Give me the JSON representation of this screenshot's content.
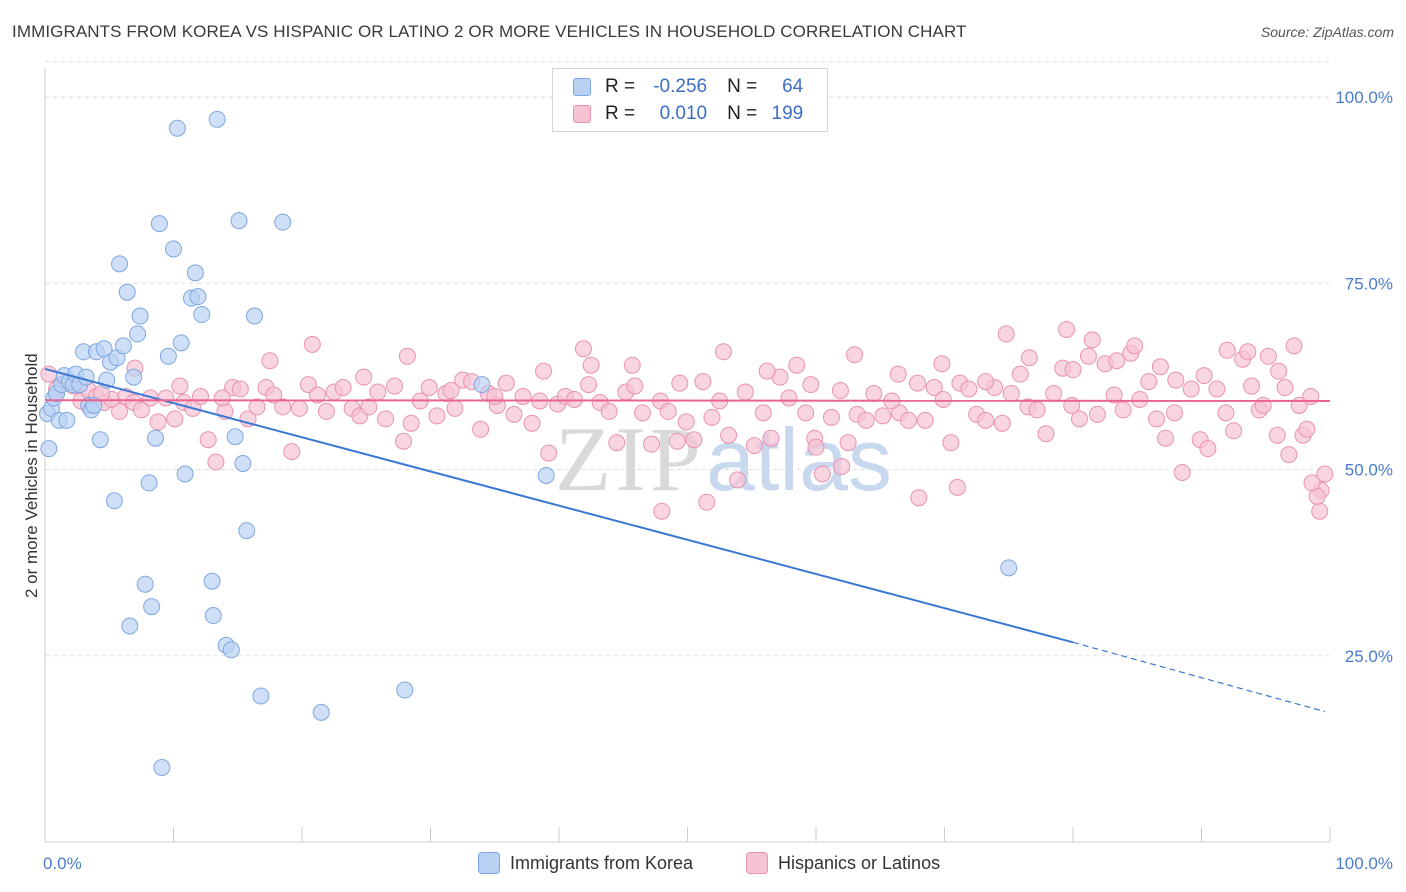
{
  "title": "IMMIGRANTS FROM KOREA VS HISPANIC OR LATINO 2 OR MORE VEHICLES IN HOUSEHOLD CORRELATION CHART",
  "source": "Source: ZipAtlas.com",
  "legend": {
    "rows": [
      {
        "r_label": "R =",
        "r_value": "-0.256",
        "n_label": "N =",
        "n_value": "64"
      },
      {
        "r_label": "R =",
        "r_value": "0.010",
        "n_label": "N =",
        "n_value": "199"
      }
    ]
  },
  "bottom_legend": {
    "series_a": "Immigrants from Korea",
    "series_b": "Hispanics or Latinos"
  },
  "watermark": {
    "part1": "ZIP",
    "part2": "atlas"
  },
  "colors": {
    "korea_fill": "#b9d2f3",
    "korea_stroke": "#7ea7e0",
    "korea_line": "#3a78d4",
    "hispanic_fill": "#f6c3d4",
    "hispanic_stroke": "#e992b2",
    "hispanic_line": "#e8638f",
    "tick_text": "#4a7cc9",
    "grid": "#dddddd"
  },
  "chart_data": {
    "type": "scatter",
    "ylabel": "2 or more Vehicles in Household",
    "xlim": [
      0,
      100
    ],
    "ylim": [
      0,
      105
    ],
    "x_tick_labels": [
      "0.0%",
      "100.0%"
    ],
    "y_ticks": [
      25,
      50,
      75,
      100
    ],
    "y_tick_labels": [
      "25.0%",
      "50.0%",
      "75.0%",
      "100.0%"
    ],
    "grid": "horizontal dashed",
    "series": [
      {
        "name": "Immigrants from Korea",
        "trend": {
          "x0": 0,
          "y0": 63.5,
          "x1": 80,
          "y1": 26.8,
          "dashed_to_x": 100,
          "dashed_to_y": 17.5
        },
        "points": [
          [
            0.2,
            57.5
          ],
          [
            0.3,
            52.8
          ],
          [
            0.5,
            58.2
          ],
          [
            0.7,
            59.6
          ],
          [
            0.9,
            60.2
          ],
          [
            1.1,
            56.6
          ],
          [
            1.3,
            61.4
          ],
          [
            1.5,
            62.6
          ],
          [
            1.7,
            56.6
          ],
          [
            1.9,
            61.8
          ],
          [
            2.2,
            61.4
          ],
          [
            2.4,
            62.8
          ],
          [
            2.7,
            61.4
          ],
          [
            3.0,
            65.8
          ],
          [
            3.2,
            62.4
          ],
          [
            3.4,
            58.6
          ],
          [
            3.6,
            58.0
          ],
          [
            3.8,
            58.6
          ],
          [
            4.0,
            65.8
          ],
          [
            4.3,
            54.0
          ],
          [
            4.6,
            66.2
          ],
          [
            4.8,
            62.0
          ],
          [
            5.1,
            64.4
          ],
          [
            5.4,
            45.8
          ],
          [
            5.6,
            65.0
          ],
          [
            5.8,
            77.6
          ],
          [
            6.1,
            66.6
          ],
          [
            6.4,
            73.8
          ],
          [
            6.6,
            29.0
          ],
          [
            6.9,
            62.4
          ],
          [
            7.2,
            68.2
          ],
          [
            7.4,
            70.6
          ],
          [
            7.8,
            34.6
          ],
          [
            8.1,
            48.2
          ],
          [
            8.3,
            31.6
          ],
          [
            8.6,
            54.2
          ],
          [
            8.9,
            83.0
          ],
          [
            9.1,
            10.0
          ],
          [
            9.6,
            65.2
          ],
          [
            10.0,
            79.6
          ],
          [
            10.3,
            95.8
          ],
          [
            10.6,
            67.0
          ],
          [
            10.9,
            49.4
          ],
          [
            11.4,
            73.0
          ],
          [
            11.7,
            76.4
          ],
          [
            11.9,
            73.2
          ],
          [
            12.2,
            70.8
          ],
          [
            13.0,
            35.0
          ],
          [
            13.1,
            30.4
          ],
          [
            13.4,
            97.0
          ],
          [
            14.1,
            26.4
          ],
          [
            14.5,
            25.8
          ],
          [
            14.8,
            54.4
          ],
          [
            15.1,
            83.4
          ],
          [
            15.4,
            50.8
          ],
          [
            15.7,
            41.8
          ],
          [
            16.3,
            70.6
          ],
          [
            16.8,
            19.6
          ],
          [
            18.5,
            83.2
          ],
          [
            21.5,
            17.4
          ],
          [
            28.0,
            20.4
          ],
          [
            34.0,
            61.4
          ],
          [
            39.0,
            49.2
          ],
          [
            75.0,
            36.8
          ]
        ]
      },
      {
        "name": "Hispanics or Latinos",
        "trend": {
          "x0": 0,
          "y0": 59.3,
          "x1": 100,
          "y1": 59.2
        },
        "points": [
          [
            0.3,
            62.8
          ],
          [
            0.9,
            60.8
          ],
          [
            1.6,
            61.6
          ],
          [
            2.2,
            61.2
          ],
          [
            2.8,
            59.2
          ],
          [
            3.4,
            60.6
          ],
          [
            4.0,
            59.8
          ],
          [
            4.6,
            59.0
          ],
          [
            5.2,
            59.4
          ],
          [
            5.8,
            57.8
          ],
          [
            6.3,
            59.8
          ],
          [
            6.9,
            59.0
          ],
          [
            7.5,
            58.0
          ],
          [
            8.2,
            59.6
          ],
          [
            8.8,
            56.4
          ],
          [
            9.4,
            59.6
          ],
          [
            10.1,
            56.8
          ],
          [
            10.8,
            59.0
          ],
          [
            11.5,
            58.2
          ],
          [
            12.1,
            59.8
          ],
          [
            12.7,
            54.0
          ],
          [
            13.3,
            51.0
          ],
          [
            14.0,
            57.8
          ],
          [
            14.6,
            61.0
          ],
          [
            15.2,
            60.8
          ],
          [
            15.8,
            56.8
          ],
          [
            16.5,
            58.4
          ],
          [
            17.2,
            61.0
          ],
          [
            17.8,
            60.0
          ],
          [
            18.5,
            58.4
          ],
          [
            19.2,
            52.4
          ],
          [
            19.8,
            58.2
          ],
          [
            20.5,
            61.4
          ],
          [
            21.2,
            60.0
          ],
          [
            21.9,
            57.8
          ],
          [
            22.5,
            60.4
          ],
          [
            23.2,
            61.0
          ],
          [
            23.9,
            58.2
          ],
          [
            24.5,
            57.2
          ],
          [
            25.2,
            58.4
          ],
          [
            25.9,
            60.4
          ],
          [
            26.5,
            56.8
          ],
          [
            27.2,
            61.2
          ],
          [
            27.9,
            53.8
          ],
          [
            28.5,
            56.2
          ],
          [
            29.2,
            59.2
          ],
          [
            29.9,
            61.0
          ],
          [
            30.5,
            57.2
          ],
          [
            31.2,
            60.2
          ],
          [
            31.9,
            58.2
          ],
          [
            32.5,
            62.0
          ],
          [
            33.2,
            61.8
          ],
          [
            33.9,
            55.4
          ],
          [
            34.5,
            60.2
          ],
          [
            35.2,
            58.6
          ],
          [
            35.9,
            61.6
          ],
          [
            36.5,
            57.4
          ],
          [
            37.2,
            59.8
          ],
          [
            37.9,
            56.2
          ],
          [
            38.5,
            59.2
          ],
          [
            39.2,
            52.2
          ],
          [
            39.9,
            58.8
          ],
          [
            40.5,
            59.8
          ],
          [
            41.2,
            59.4
          ],
          [
            41.9,
            66.2
          ],
          [
            42.5,
            64.0
          ],
          [
            43.2,
            59.0
          ],
          [
            43.9,
            57.8
          ],
          [
            44.5,
            53.6
          ],
          [
            45.2,
            60.4
          ],
          [
            45.9,
            61.2
          ],
          [
            46.5,
            57.6
          ],
          [
            47.2,
            53.4
          ],
          [
            47.9,
            59.2
          ],
          [
            48.5,
            57.8
          ],
          [
            49.2,
            53.8
          ],
          [
            49.9,
            56.4
          ],
          [
            50.5,
            54.0
          ],
          [
            51.2,
            61.8
          ],
          [
            51.9,
            57.0
          ],
          [
            52.5,
            59.2
          ],
          [
            53.2,
            54.6
          ],
          [
            53.9,
            48.6
          ],
          [
            54.5,
            60.4
          ],
          [
            55.2,
            53.2
          ],
          [
            55.9,
            57.6
          ],
          [
            56.5,
            54.2
          ],
          [
            57.2,
            62.4
          ],
          [
            57.9,
            59.6
          ],
          [
            58.5,
            64.0
          ],
          [
            59.2,
            57.6
          ],
          [
            59.9,
            54.2
          ],
          [
            60.5,
            49.4
          ],
          [
            61.2,
            57.0
          ],
          [
            61.9,
            60.6
          ],
          [
            62.5,
            53.6
          ],
          [
            63.2,
            57.4
          ],
          [
            63.9,
            56.6
          ],
          [
            64.5,
            60.2
          ],
          [
            65.2,
            57.2
          ],
          [
            65.9,
            59.2
          ],
          [
            66.5,
            57.6
          ],
          [
            67.2,
            56.6
          ],
          [
            67.9,
            61.6
          ],
          [
            68.5,
            56.6
          ],
          [
            69.2,
            61.0
          ],
          [
            69.9,
            59.4
          ],
          [
            70.5,
            53.6
          ],
          [
            71.2,
            61.6
          ],
          [
            71.9,
            60.8
          ],
          [
            72.5,
            57.4
          ],
          [
            73.2,
            56.6
          ],
          [
            73.9,
            61.0
          ],
          [
            74.5,
            56.2
          ],
          [
            75.2,
            60.2
          ],
          [
            75.9,
            62.8
          ],
          [
            76.5,
            58.4
          ],
          [
            77.2,
            58.0
          ],
          [
            77.9,
            54.8
          ],
          [
            78.5,
            60.2
          ],
          [
            79.2,
            63.6
          ],
          [
            79.9,
            58.6
          ],
          [
            80.5,
            56.8
          ],
          [
            81.2,
            65.2
          ],
          [
            81.9,
            57.4
          ],
          [
            82.5,
            64.2
          ],
          [
            83.2,
            60.0
          ],
          [
            83.9,
            58.0
          ],
          [
            84.5,
            65.6
          ],
          [
            85.2,
            59.4
          ],
          [
            85.9,
            61.8
          ],
          [
            86.5,
            56.8
          ],
          [
            87.2,
            54.2
          ],
          [
            87.9,
            57.6
          ],
          [
            88.5,
            49.6
          ],
          [
            89.2,
            60.8
          ],
          [
            89.9,
            54.0
          ],
          [
            90.5,
            52.8
          ],
          [
            91.2,
            60.8
          ],
          [
            91.9,
            57.6
          ],
          [
            92.5,
            55.2
          ],
          [
            93.2,
            64.8
          ],
          [
            93.9,
            61.2
          ],
          [
            94.5,
            58.0
          ],
          [
            95.2,
            65.2
          ],
          [
            95.9,
            54.6
          ],
          [
            96.5,
            61.0
          ],
          [
            97.2,
            66.6
          ],
          [
            97.9,
            54.6
          ],
          [
            98.5,
            59.8
          ],
          [
            99.2,
            44.4
          ],
          [
            99.6,
            49.4
          ],
          [
            99.3,
            47.2
          ],
          [
            99.0,
            46.4
          ],
          [
            98.6,
            48.2
          ],
          [
            4.4,
            60.2
          ],
          [
            7.0,
            63.6
          ],
          [
            10.5,
            61.2
          ],
          [
            13.8,
            59.6
          ],
          [
            17.5,
            64.6
          ],
          [
            20.8,
            66.8
          ],
          [
            24.8,
            62.4
          ],
          [
            28.2,
            65.2
          ],
          [
            31.6,
            60.6
          ],
          [
            35.0,
            59.8
          ],
          [
            38.8,
            63.2
          ],
          [
            42.3,
            61.4
          ],
          [
            45.7,
            64.0
          ],
          [
            49.4,
            61.6
          ],
          [
            52.8,
            65.8
          ],
          [
            56.2,
            63.2
          ],
          [
            59.6,
            61.4
          ],
          [
            63.0,
            65.4
          ],
          [
            66.4,
            62.8
          ],
          [
            69.8,
            64.2
          ],
          [
            73.2,
            61.8
          ],
          [
            76.6,
            65.0
          ],
          [
            80.0,
            63.4
          ],
          [
            83.4,
            64.6
          ],
          [
            86.8,
            63.8
          ],
          [
            90.2,
            62.6
          ],
          [
            93.6,
            65.8
          ],
          [
            96.0,
            63.2
          ],
          [
            97.6,
            58.6
          ],
          [
            51.5,
            45.6
          ],
          [
            48.0,
            44.4
          ],
          [
            68.0,
            46.2
          ],
          [
            71.0,
            47.6
          ],
          [
            62.0,
            50.4
          ],
          [
            74.8,
            68.2
          ],
          [
            79.5,
            68.8
          ],
          [
            81.5,
            67.4
          ],
          [
            84.8,
            66.6
          ],
          [
            88.0,
            62.0
          ],
          [
            92.0,
            66.0
          ],
          [
            94.8,
            58.6
          ],
          [
            98.2,
            55.4
          ],
          [
            96.8,
            52.0
          ],
          [
            60.0,
            53.0
          ]
        ]
      }
    ]
  }
}
